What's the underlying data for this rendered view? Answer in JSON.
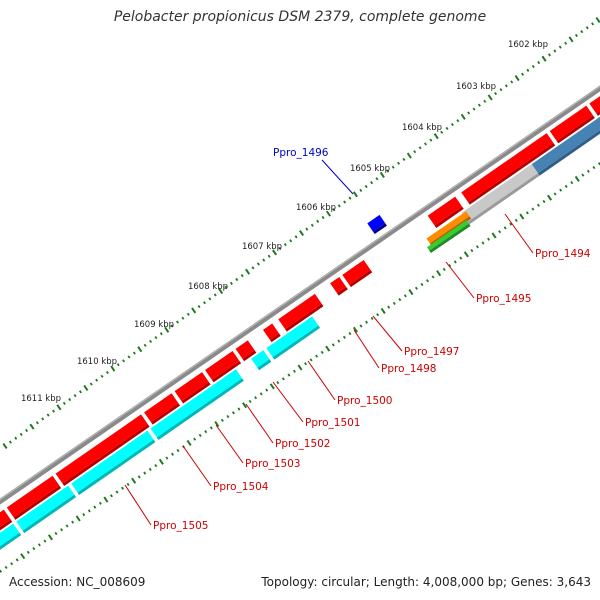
{
  "title": "Pelobacter propionicus DSM 2379, complete genome",
  "footer": {
    "accession": "Accession: NC_008609",
    "stats": "Topology: circular; Length: 4,008,000 bp; Genes: 3,643"
  },
  "colors": {
    "backbone": "#8a8a8a",
    "cds": "#ff0000",
    "cds_dark": "#b80000",
    "selected_gene": "#0000ff",
    "tick": "#1f7a1f",
    "gene_label": "#cc0000",
    "selected_label": "#0000cc",
    "rna_cyan": "#00ffff",
    "rna_steelblue": "#4682b4",
    "rna_lightgray": "#c8c8c8",
    "rna_orange": "#ff8c00",
    "rna_green": "#32cd32"
  },
  "kbp_ticks": [
    "1602 kbp",
    "1603 kbp",
    "1604 kbp",
    "1605 kbp",
    "1606 kbp",
    "1607 kbp",
    "1608 kbp",
    "1609 kbp",
    "1610 kbp",
    "1611 kbp"
  ],
  "gene_labels": [
    {
      "text": "Ppro_1494",
      "color": "red"
    },
    {
      "text": "Ppro_1495",
      "color": "red"
    },
    {
      "text": "Ppro_1496",
      "color": "blue"
    },
    {
      "text": "Ppro_1497",
      "color": "red"
    },
    {
      "text": "Ppro_1498",
      "color": "red"
    },
    {
      "text": "Ppro_1500",
      "color": "red"
    },
    {
      "text": "Ppro_1501",
      "color": "red"
    },
    {
      "text": "Ppro_1502",
      "color": "red"
    },
    {
      "text": "Ppro_1503",
      "color": "red"
    },
    {
      "text": "Ppro_1504",
      "color": "red"
    },
    {
      "text": "Ppro_1505",
      "color": "red"
    }
  ]
}
